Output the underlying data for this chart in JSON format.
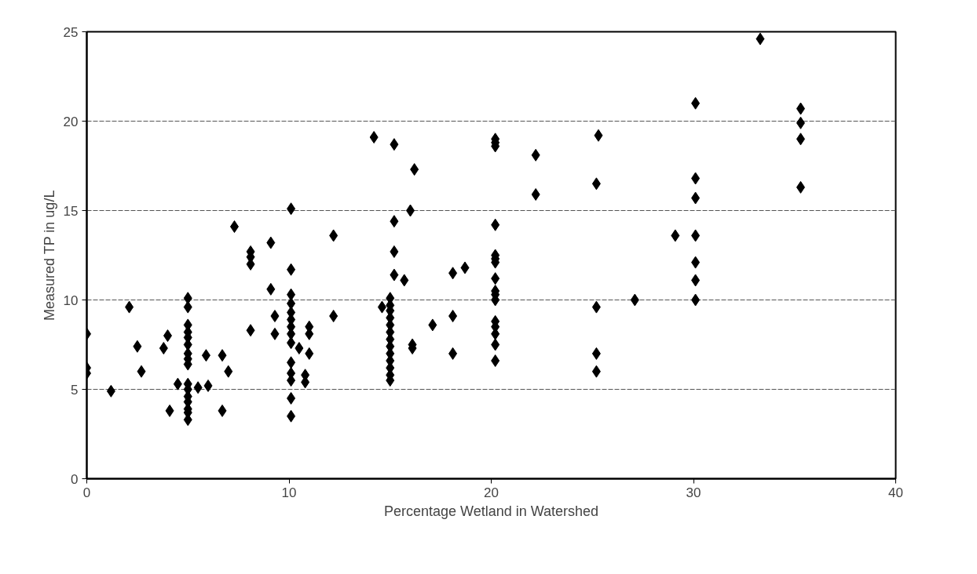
{
  "chart_data": {
    "type": "scatter",
    "xlabel": "Percentage Wetland in Watershed",
    "ylabel": "Measured TP in ug/L",
    "xlim": [
      0,
      40
    ],
    "xticks": [
      0,
      10,
      20,
      30,
      40
    ],
    "ylim": [
      0,
      25
    ],
    "yticks": [
      0,
      5,
      10,
      15,
      20,
      25
    ],
    "grid": "y",
    "marker": "diamond",
    "series": [
      {
        "color": "#000000",
        "x": [
          0,
          0,
          0,
          1.2,
          2.1,
          2.5,
          2.7,
          3.8,
          4.0,
          4.1,
          5,
          5,
          5,
          5,
          5,
          5,
          5,
          5,
          5,
          5,
          5,
          5,
          5,
          5,
          5,
          5,
          4.5,
          5.5,
          5.9,
          6.0,
          6.7,
          6.7,
          7.0,
          7.3,
          8.1,
          8.1,
          8.1,
          8.1,
          9.1,
          9.1,
          10.1,
          10.1,
          10.1,
          10.1,
          10.1,
          10.1,
          10.1,
          10.1,
          10.1,
          10.1,
          10.1,
          10.1,
          10.1,
          10.1,
          9.3,
          9.3,
          11.0,
          11.0,
          10.5,
          11.0,
          10.8,
          10.8,
          12.2,
          12.2,
          14.2,
          15.2,
          16.2,
          16.0,
          15.2,
          15.2,
          15.2,
          15.7,
          18.1,
          18.7,
          15,
          15,
          15,
          15,
          15,
          15,
          15,
          15,
          15,
          15,
          15,
          15,
          15,
          14.6,
          16.1,
          16.1,
          17.1,
          18.1,
          18.1,
          20.2,
          20.2,
          20.2,
          22.2,
          22.2,
          25.3,
          25.2,
          20.2,
          20.2,
          20.2,
          20.2,
          20.2,
          20.2,
          20.2,
          20.2,
          20.2,
          20.2,
          20.2,
          20.2,
          20.2,
          25.2,
          25.2,
          25.2,
          27.1,
          33.3,
          30.1,
          35.3,
          35.3,
          35.3,
          35.3,
          30.1,
          30.1,
          29.1,
          30.1,
          30.1,
          30.1,
          30.1
        ],
        "values": [
          8.1,
          6.2,
          5.9,
          4.9,
          9.6,
          7.4,
          6.0,
          7.3,
          8.0,
          3.8,
          10.1,
          9.6,
          8.6,
          8.2,
          7.9,
          7.5,
          7.0,
          6.7,
          6.4,
          5.3,
          5.0,
          4.6,
          4.3,
          3.9,
          3.7,
          3.3,
          5.3,
          5.1,
          6.9,
          5.2,
          6.9,
          3.8,
          6.0,
          14.1,
          12.7,
          12.4,
          12.0,
          8.3,
          13.2,
          10.6,
          15.1,
          11.7,
          10.3,
          9.8,
          9.3,
          8.9,
          8.5,
          8.1,
          7.6,
          6.5,
          5.9,
          5.5,
          4.5,
          3.5,
          9.1,
          8.1,
          8.5,
          8.1,
          7.3,
          7.0,
          5.8,
          5.4,
          13.6,
          9.1,
          19.1,
          18.7,
          17.3,
          15.0,
          14.4,
          12.7,
          11.4,
          11.1,
          11.5,
          11.8,
          10.1,
          9.7,
          9.4,
          9.0,
          8.6,
          8.2,
          7.8,
          7.4,
          7.0,
          6.6,
          6.2,
          5.8,
          5.5,
          9.6,
          7.5,
          7.3,
          8.6,
          9.1,
          7.0,
          19.0,
          18.8,
          18.6,
          18.1,
          15.9,
          19.2,
          16.5,
          14.2,
          12.5,
          12.3,
          12.1,
          11.2,
          10.5,
          10.3,
          10.0,
          8.8,
          8.5,
          8.1,
          7.5,
          6.6,
          9.6,
          7.0,
          6.0,
          10.0,
          24.6,
          21.0,
          20.7,
          19.9,
          19.0,
          16.3,
          16.8,
          15.7,
          13.6,
          13.6,
          12.1,
          11.1,
          10.0
        ]
      }
    ]
  }
}
